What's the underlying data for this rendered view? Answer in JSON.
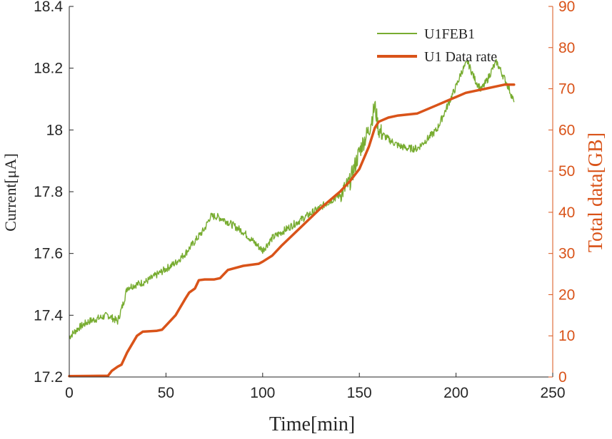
{
  "chart_data": {
    "type": "line",
    "xlabel": "Time[min]",
    "ylabel_left": "Current[μA]",
    "ylabel_right": "Total data[GB]",
    "xlim": [
      0,
      250
    ],
    "ylim_left": [
      17.2,
      18.4
    ],
    "ylim_right": [
      0,
      90
    ],
    "x_ticks": [
      0,
      50,
      100,
      150,
      200,
      250
    ],
    "y_left_ticks": [
      "17.2",
      "17.4",
      "17.6",
      "17.8",
      "18",
      "18.2",
      "18.4"
    ],
    "y_right_ticks": [
      0,
      10,
      20,
      30,
      40,
      50,
      60,
      70,
      80,
      90
    ],
    "grid": false,
    "legend_position": "top-right",
    "colors": {
      "series1": "#77AC30",
      "series2": "#D95319",
      "axis": "#262626",
      "right_axis": "#D95319"
    },
    "series": [
      {
        "name": "U1FEB1",
        "axis": "left",
        "x": [
          0,
          5,
          10,
          15,
          20,
          25,
          28,
          30,
          35,
          40,
          45,
          50,
          55,
          60,
          65,
          70,
          73,
          76,
          80,
          85,
          90,
          95,
          100,
          105,
          110,
          115,
          120,
          125,
          130,
          135,
          140,
          145,
          150,
          152,
          155,
          157,
          158,
          160,
          163,
          165,
          170,
          175,
          180,
          185,
          190,
          195,
          200,
          203,
          206,
          210,
          213,
          216,
          219,
          221,
          224,
          227,
          230
        ],
        "y": [
          17.33,
          17.36,
          17.38,
          17.39,
          17.4,
          17.38,
          17.44,
          17.49,
          17.5,
          17.51,
          17.53,
          17.55,
          17.57,
          17.6,
          17.64,
          17.68,
          17.72,
          17.72,
          17.71,
          17.69,
          17.67,
          17.64,
          17.61,
          17.65,
          17.67,
          17.69,
          17.71,
          17.73,
          17.75,
          17.77,
          17.79,
          17.83,
          17.93,
          17.96,
          18.0,
          18.05,
          18.08,
          18.0,
          17.98,
          17.97,
          17.95,
          17.94,
          17.94,
          17.97,
          18.0,
          18.07,
          18.14,
          18.19,
          18.22,
          18.16,
          18.13,
          18.16,
          18.2,
          18.22,
          18.18,
          18.14,
          18.09
        ]
      },
      {
        "name": "U1 Data rate",
        "axis": "right",
        "x": [
          0,
          20,
          22,
          25,
          27,
          30,
          35,
          38,
          45,
          48,
          50,
          55,
          60,
          62,
          65,
          67,
          70,
          75,
          78,
          82,
          90,
          98,
          100,
          105,
          110,
          120,
          130,
          140,
          145,
          150,
          155,
          158,
          160,
          165,
          170,
          180,
          190,
          200,
          205,
          210,
          215,
          220,
          225,
          230
        ],
        "y": [
          0.2,
          0.3,
          1.5,
          2.5,
          3.0,
          6.0,
          10.0,
          11.0,
          11.2,
          11.5,
          12.5,
          15.0,
          19.0,
          20.5,
          21.5,
          23.5,
          23.7,
          23.7,
          24.0,
          26.0,
          27.0,
          27.5,
          28.0,
          29.5,
          32.0,
          36.5,
          41.0,
          45.0,
          47.5,
          50.5,
          56.0,
          60.5,
          62.0,
          63.0,
          63.5,
          64.0,
          66.0,
          68.0,
          69.0,
          69.5,
          70.0,
          70.5,
          71.0,
          71.0
        ]
      }
    ]
  }
}
